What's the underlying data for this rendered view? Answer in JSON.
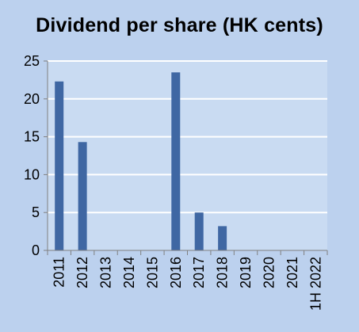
{
  "chart_data": {
    "type": "bar",
    "title": "Dividend per share (HK cents)",
    "xlabel": "",
    "ylabel": "",
    "categories": [
      "2011",
      "2012",
      "2013",
      "2014",
      "2015",
      "2016",
      "2017",
      "2018",
      "2019",
      "2020",
      "2021",
      "1H 2022"
    ],
    "values": [
      22.3,
      14.3,
      0,
      0,
      0,
      23.5,
      5.0,
      3.2,
      0,
      0,
      0,
      0
    ],
    "ylim": [
      0,
      25
    ],
    "yticks": [
      0,
      5,
      10,
      15,
      20,
      25
    ],
    "grid": "horizontal",
    "legend": "none",
    "colors": {
      "background": "#bcd1ee",
      "plot_area": "#c9dbf2",
      "bar": "#3f67a3",
      "gridline": "#ffffff",
      "axis": "#808080"
    }
  }
}
